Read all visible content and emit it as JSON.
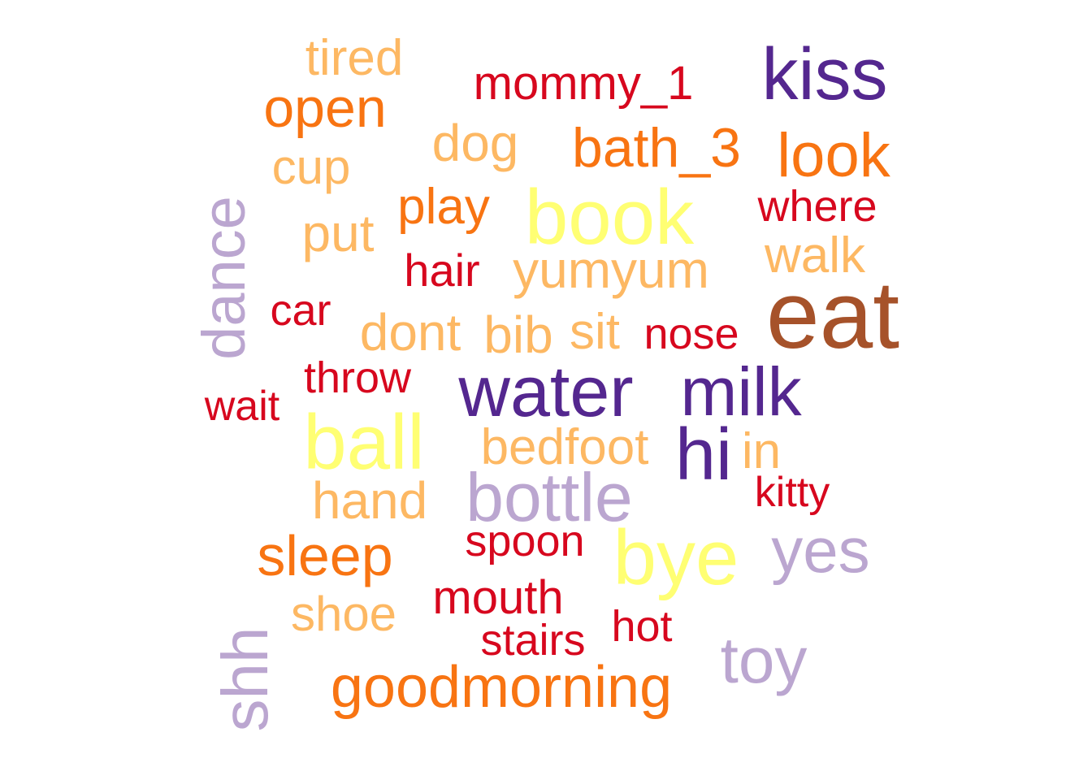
{
  "palette": {
    "lavender": "#BBA6D0",
    "purple": "#54278F",
    "yellow": "#FFFF73",
    "light_orange": "#FDB863",
    "orange": "#F87412",
    "red": "#D7071E",
    "brown": "#A6522A"
  },
  "words": [
    {
      "text": "eat",
      "color": "brown"
    },
    {
      "text": "book",
      "color": "yellow"
    },
    {
      "text": "ball",
      "color": "yellow"
    },
    {
      "text": "bye",
      "color": "yellow"
    },
    {
      "text": "water",
      "color": "purple"
    },
    {
      "text": "milk",
      "color": "purple"
    },
    {
      "text": "kiss",
      "color": "purple"
    },
    {
      "text": "hi",
      "color": "purple"
    },
    {
      "text": "bottle",
      "color": "lavender"
    },
    {
      "text": "yes",
      "color": "lavender"
    },
    {
      "text": "toy",
      "color": "lavender"
    },
    {
      "text": "dance",
      "color": "lavender"
    },
    {
      "text": "shh",
      "color": "lavender"
    },
    {
      "text": "goodmorning",
      "color": "orange"
    },
    {
      "text": "sleep",
      "color": "orange"
    },
    {
      "text": "look",
      "color": "orange"
    },
    {
      "text": "open",
      "color": "orange"
    },
    {
      "text": "bath_3",
      "color": "orange"
    },
    {
      "text": "play",
      "color": "orange"
    },
    {
      "text": "yumyum",
      "color": "light_orange"
    },
    {
      "text": "dog",
      "color": "light_orange"
    },
    {
      "text": "tired",
      "color": "light_orange"
    },
    {
      "text": "cup",
      "color": "light_orange"
    },
    {
      "text": "put",
      "color": "light_orange"
    },
    {
      "text": "walk",
      "color": "light_orange"
    },
    {
      "text": "dont",
      "color": "light_orange"
    },
    {
      "text": "bib",
      "color": "light_orange"
    },
    {
      "text": "sit",
      "color": "light_orange"
    },
    {
      "text": "bedfoot",
      "color": "light_orange"
    },
    {
      "text": "in",
      "color": "light_orange"
    },
    {
      "text": "hand",
      "color": "light_orange"
    },
    {
      "text": "shoe",
      "color": "light_orange"
    },
    {
      "text": "mommy_1",
      "color": "red"
    },
    {
      "text": "where",
      "color": "red"
    },
    {
      "text": "hair",
      "color": "red"
    },
    {
      "text": "car",
      "color": "red"
    },
    {
      "text": "nose",
      "color": "red"
    },
    {
      "text": "throw",
      "color": "red"
    },
    {
      "text": "wait",
      "color": "red"
    },
    {
      "text": "kitty",
      "color": "red"
    },
    {
      "text": "spoon",
      "color": "red"
    },
    {
      "text": "mouth",
      "color": "red"
    },
    {
      "text": "hot",
      "color": "red"
    },
    {
      "text": "stairs",
      "color": "red"
    }
  ]
}
